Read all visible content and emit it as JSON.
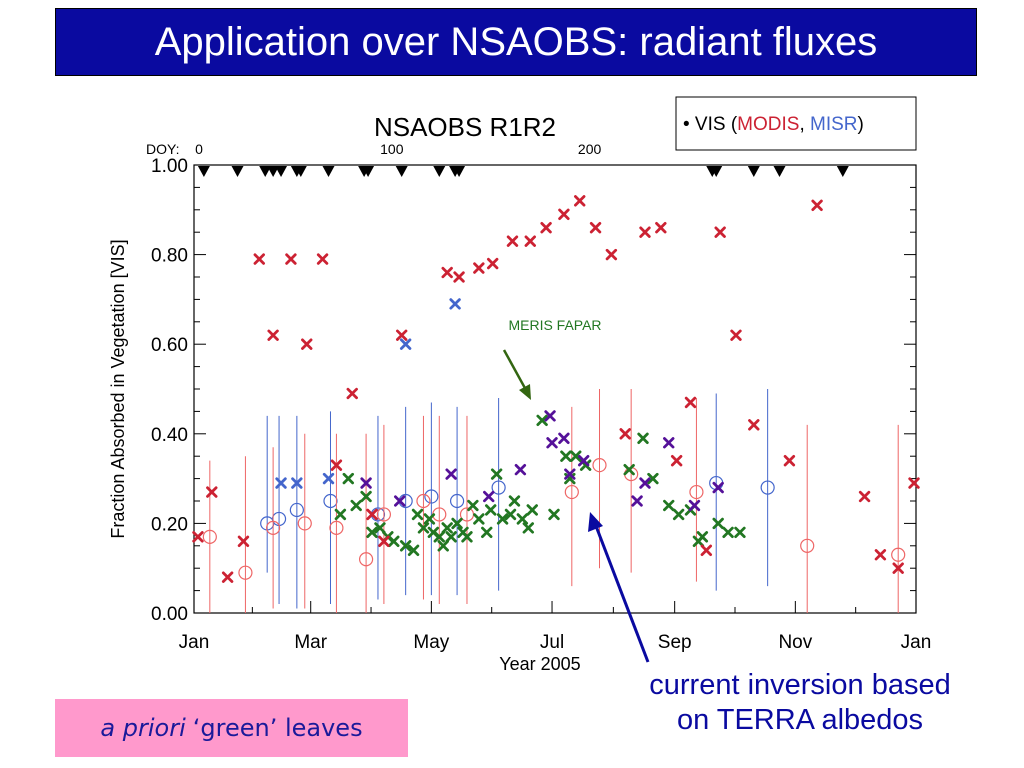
{
  "slide": {
    "title": "Application over NSAOBS: radiant fluxes",
    "note_italic": "a priori",
    "note_rest": "‘green’ leaves",
    "callout_line1": "current inversion based",
    "callout_line2": "on TERRA albedos"
  },
  "colors": {
    "banner": "#0a0aa0",
    "modis": "#cc2233",
    "misr": "#4466cc",
    "meris": "#227722",
    "purple": "#551199",
    "prior": "#ee6666",
    "note_bg": "#ff99cc",
    "callout": "#0a0aa0",
    "meris_arrow": "#336611"
  },
  "chart_data": {
    "type": "scatter",
    "title": "NSAOBS  R1R2",
    "ylabel": "Fraction Absorbed in Vegetation [VIS]",
    "xlabel": "Year 2005",
    "xlim": [
      0,
      365
    ],
    "ylim": [
      0,
      1.0
    ],
    "x_ticks": [
      {
        "doy": 0,
        "label": "Jan"
      },
      {
        "doy": 59,
        "label": "Mar"
      },
      {
        "doy": 120,
        "label": "May"
      },
      {
        "doy": 181,
        "label": "Jul"
      },
      {
        "doy": 243,
        "label": "Sep"
      },
      {
        "doy": 304,
        "label": "Nov"
      },
      {
        "doy": 365,
        "label": "Jan"
      }
    ],
    "y_ticks": [
      {
        "value": 0.0,
        "label": "0.00"
      },
      {
        "value": 0.2,
        "label": "0.20"
      },
      {
        "value": 0.4,
        "label": "0.40"
      },
      {
        "value": 0.6,
        "label": "0.60"
      },
      {
        "value": 0.8,
        "label": "0.80"
      },
      {
        "value": 1.0,
        "label": "1.00"
      }
    ],
    "doy_axis": {
      "label": "DOY:",
      "ticks": [
        {
          "doy": 0,
          "label": "0"
        },
        {
          "doy": 100,
          "label": "100"
        },
        {
          "doy": 200,
          "label": "200"
        }
      ]
    },
    "observation_doys": [
      5,
      22,
      36,
      40,
      44,
      52,
      54,
      68,
      86,
      88,
      105,
      124,
      132,
      134,
      262,
      264,
      283,
      296,
      328
    ],
    "legend": {
      "prefix": "• VIS  (",
      "modis": "MODIS",
      "sep": ", ",
      "misr": "MISR",
      "suffix": ")",
      "position": "top-right"
    },
    "annotation": {
      "text": "MERIS FAPAR"
    },
    "series": [
      {
        "name": "MODIS",
        "marker": "x",
        "color": "#cc2233",
        "points": [
          [
            2,
            0.17
          ],
          [
            9,
            0.27
          ],
          [
            17,
            0.08
          ],
          [
            25,
            0.16
          ],
          [
            33,
            0.79
          ],
          [
            40,
            0.62
          ],
          [
            49,
            0.79
          ],
          [
            57,
            0.6
          ],
          [
            65,
            0.79
          ],
          [
            72,
            0.33
          ],
          [
            80,
            0.49
          ],
          [
            90,
            0.22
          ],
          [
            96,
            0.16
          ],
          [
            105,
            0.62
          ],
          [
            128,
            0.76
          ],
          [
            134,
            0.75
          ],
          [
            144,
            0.77
          ],
          [
            151,
            0.78
          ],
          [
            161,
            0.83
          ],
          [
            170,
            0.83
          ],
          [
            178,
            0.86
          ],
          [
            187,
            0.89
          ],
          [
            195,
            0.92
          ],
          [
            203,
            0.86
          ],
          [
            211,
            0.8
          ],
          [
            218,
            0.4
          ],
          [
            228,
            0.85
          ],
          [
            236,
            0.86
          ],
          [
            244,
            0.34
          ],
          [
            251,
            0.47
          ],
          [
            259,
            0.14
          ],
          [
            266,
            0.85
          ],
          [
            274,
            0.62
          ],
          [
            283,
            0.42
          ],
          [
            301,
            0.34
          ],
          [
            315,
            0.91
          ],
          [
            339,
            0.26
          ],
          [
            347,
            0.13
          ],
          [
            356,
            0.1
          ],
          [
            364,
            0.29
          ]
        ]
      },
      {
        "name": "MISR",
        "marker": "x",
        "color": "#4466cc",
        "points": [
          [
            44,
            0.29
          ],
          [
            52,
            0.29
          ],
          [
            68,
            0.3
          ],
          [
            107,
            0.6
          ],
          [
            132,
            0.69
          ]
        ]
      },
      {
        "marker": "x",
        "color": "#227722",
        "points": [
          [
            74,
            0.22
          ],
          [
            78,
            0.3
          ],
          [
            82,
            0.24
          ],
          [
            87,
            0.26
          ],
          [
            90,
            0.18
          ],
          [
            94,
            0.19
          ],
          [
            98,
            0.17
          ],
          [
            101,
            0.16
          ],
          [
            107,
            0.15
          ],
          [
            111,
            0.14
          ],
          [
            113,
            0.22
          ],
          [
            116,
            0.19
          ],
          [
            119,
            0.21
          ],
          [
            121,
            0.18
          ],
          [
            124,
            0.17
          ],
          [
            126,
            0.15
          ],
          [
            128,
            0.19
          ],
          [
            130,
            0.17
          ],
          [
            133,
            0.2
          ],
          [
            136,
            0.18
          ],
          [
            138,
            0.17
          ],
          [
            141,
            0.24
          ],
          [
            144,
            0.21
          ],
          [
            148,
            0.18
          ],
          [
            150,
            0.23
          ],
          [
            153,
            0.31
          ],
          [
            156,
            0.21
          ],
          [
            160,
            0.22
          ],
          [
            162,
            0.25
          ],
          [
            166,
            0.21
          ],
          [
            169,
            0.19
          ],
          [
            171,
            0.23
          ],
          [
            176,
            0.43
          ],
          [
            182,
            0.22
          ],
          [
            188,
            0.35
          ],
          [
            190,
            0.3
          ],
          [
            193,
            0.35
          ],
          [
            198,
            0.33
          ],
          [
            220,
            0.32
          ],
          [
            227,
            0.39
          ],
          [
            232,
            0.3
          ],
          [
            240,
            0.24
          ],
          [
            245,
            0.22
          ],
          [
            251,
            0.23
          ],
          [
            255,
            0.16
          ],
          [
            257,
            0.17
          ],
          [
            265,
            0.2
          ],
          [
            270,
            0.18
          ],
          [
            276,
            0.18
          ]
        ]
      },
      {
        "marker": "x",
        "color": "#551199",
        "points": [
          [
            87,
            0.29
          ],
          [
            104,
            0.25
          ],
          [
            130,
            0.31
          ],
          [
            149,
            0.26
          ],
          [
            165,
            0.32
          ],
          [
            180,
            0.44
          ],
          [
            181,
            0.38
          ],
          [
            187,
            0.39
          ],
          [
            190,
            0.31
          ],
          [
            197,
            0.34
          ],
          [
            224,
            0.25
          ],
          [
            228,
            0.29
          ],
          [
            240,
            0.38
          ],
          [
            253,
            0.24
          ],
          [
            265,
            0.28
          ]
        ]
      },
      {
        "marker": "circle",
        "color": "#4466cc",
        "points": [
          [
            37,
            0.2,
            0.09,
            0.44
          ],
          [
            43,
            0.21,
            0.02,
            0.44
          ],
          [
            52,
            0.23,
            0.01,
            0.44
          ],
          [
            69,
            0.25,
            0.02,
            0.45
          ],
          [
            93,
            0.22,
            0.03,
            0.44
          ],
          [
            107,
            0.25,
            0.04,
            0.46
          ],
          [
            120,
            0.26,
            0.04,
            0.47
          ],
          [
            133,
            0.25,
            0.04,
            0.46
          ],
          [
            154,
            0.28,
            0.05,
            0.48
          ],
          [
            264,
            0.29,
            0.05,
            0.49
          ],
          [
            290,
            0.28,
            0.06,
            0.5
          ]
        ]
      },
      {
        "marker": "circle",
        "color": "#ee6666",
        "points": [
          [
            8,
            0.17,
            0.0,
            0.34
          ],
          [
            26,
            0.09,
            0.0,
            0.35
          ],
          [
            40,
            0.19,
            0.01,
            0.37
          ],
          [
            56,
            0.2,
            0.01,
            0.4
          ],
          [
            72,
            0.19,
            0.0,
            0.4
          ],
          [
            87,
            0.12,
            0.0,
            0.4
          ],
          [
            96,
            0.22,
            0.02,
            0.42
          ],
          [
            116,
            0.25,
            0.03,
            0.44
          ],
          [
            124,
            0.22,
            0.02,
            0.44
          ],
          [
            138,
            0.22,
            0.02,
            0.44
          ],
          [
            191,
            0.27,
            0.06,
            0.46
          ],
          [
            205,
            0.33,
            0.1,
            0.5
          ],
          [
            221,
            0.31,
            0.09,
            0.5
          ],
          [
            254,
            0.27,
            0.07,
            0.48
          ],
          [
            310,
            0.15,
            0.0,
            0.42
          ],
          [
            356,
            0.13,
            0.0,
            0.42
          ]
        ]
      }
    ]
  }
}
